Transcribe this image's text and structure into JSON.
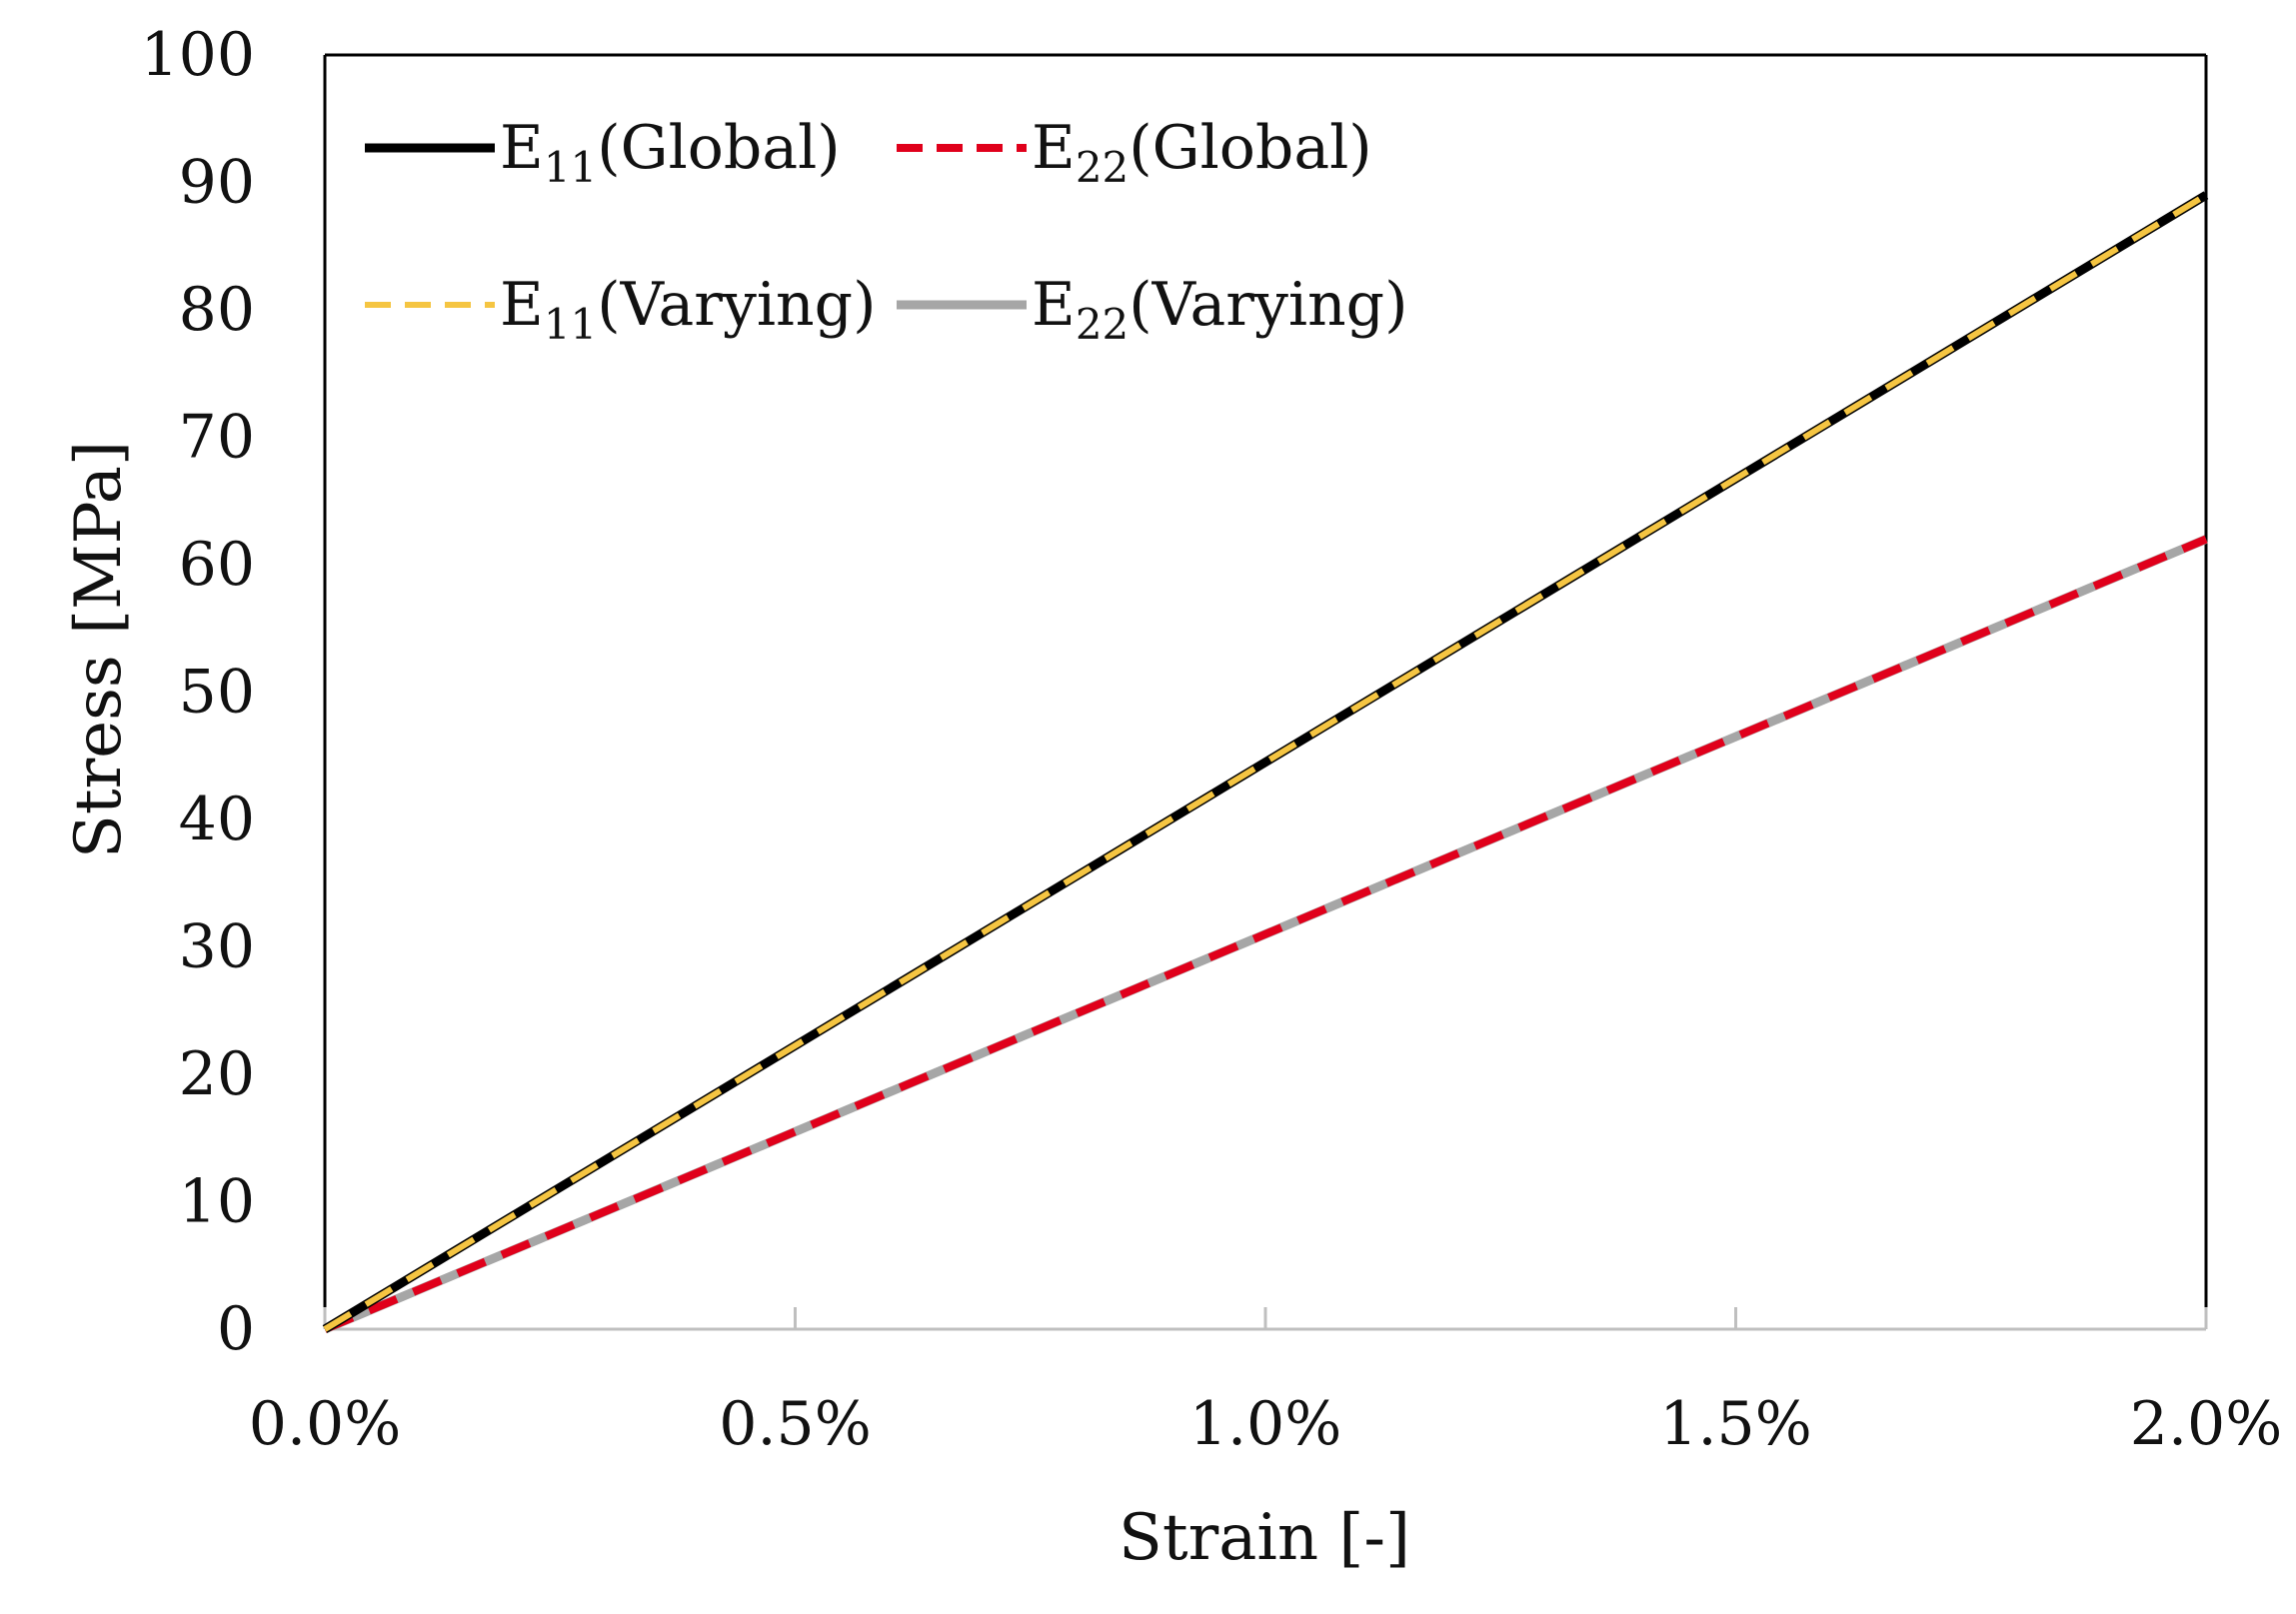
{
  "chart_data": {
    "type": "line",
    "title": "",
    "xlabel": "Strain [-]",
    "ylabel": "Stress [MPa]",
    "xlim": [
      0,
      0.02
    ],
    "ylim": [
      0,
      100
    ],
    "x_ticks": [
      0,
      0.005,
      0.01,
      0.015,
      0.02
    ],
    "x_tick_labels": [
      "0.0%",
      "0.5%",
      "1.0%",
      "1.5%",
      "2.0%"
    ],
    "y_ticks": [
      0,
      10,
      20,
      30,
      40,
      50,
      60,
      70,
      80,
      90,
      100
    ],
    "y_tick_labels": [
      "0",
      "10",
      "20",
      "30",
      "40",
      "50",
      "60",
      "70",
      "80",
      "90",
      "100"
    ],
    "grid": false,
    "legend_position": "top-left",
    "series": [
      {
        "key": "e11-global",
        "name": "E11(Global)",
        "label_main": "E",
        "label_sub": "11",
        "label_suffix": "(Global)",
        "color": "#000000",
        "style": "solid",
        "x": [
          0,
          0.02
        ],
        "y": [
          0,
          89
        ]
      },
      {
        "key": "e22-global",
        "name": "E22(Global)",
        "label_main": "E",
        "label_sub": "22",
        "label_suffix": "(Global)",
        "color": "#e0001b",
        "style": "dashed",
        "x": [
          0,
          0.02
        ],
        "y": [
          0,
          62
        ]
      },
      {
        "key": "e11-varying",
        "name": "E11(Varying)",
        "label_main": "E",
        "label_sub": "11",
        "label_suffix": "(Varying)",
        "color": "#f5c542",
        "style": "dashed",
        "x": [
          0,
          0.02
        ],
        "y": [
          0,
          89
        ]
      },
      {
        "key": "e22-varying",
        "name": "E22(Varying)",
        "label_main": "E",
        "label_sub": "22",
        "label_suffix": "(Varying)",
        "color": "#a6a6a6",
        "style": "solid",
        "x": [
          0,
          0.02
        ],
        "y": [
          0,
          62
        ]
      }
    ]
  }
}
